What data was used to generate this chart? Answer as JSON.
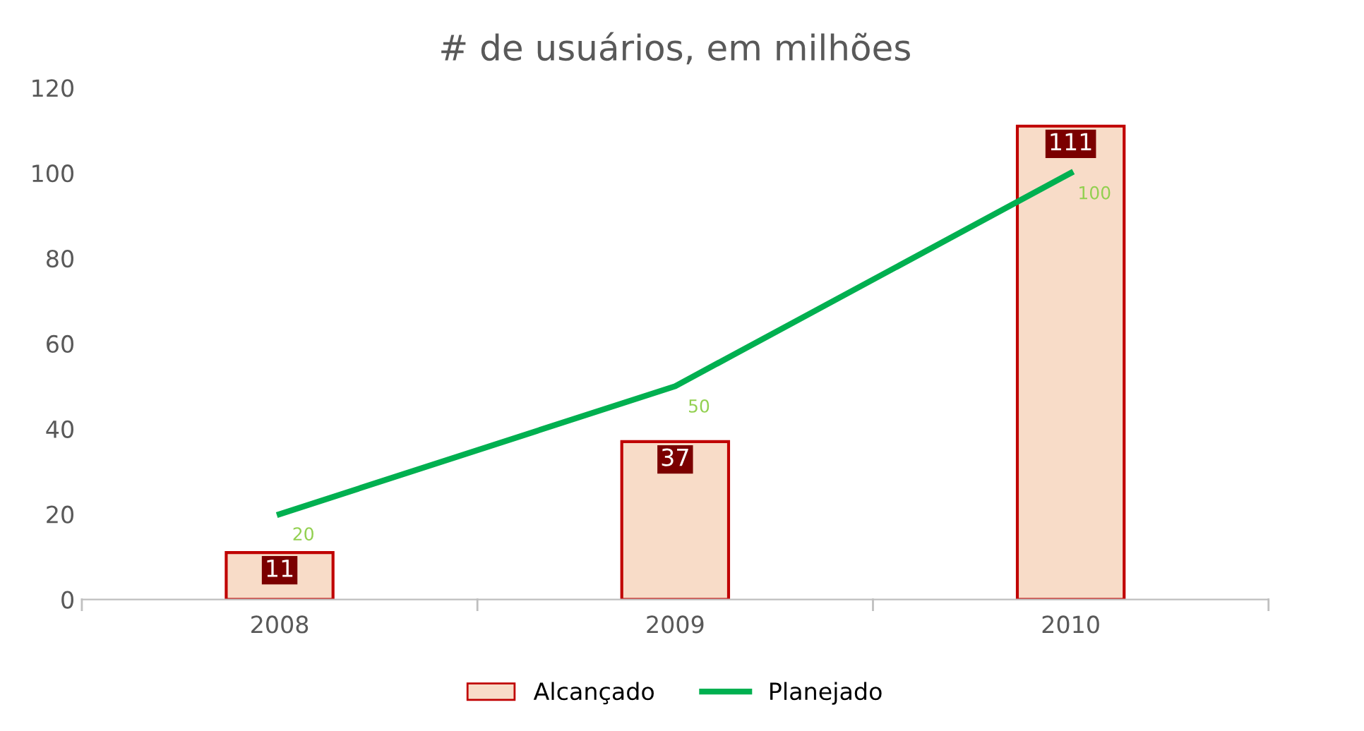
{
  "chart_data": {
    "type": "bar",
    "title": "# de usuários, em milhões",
    "categories": [
      "2008",
      "2009",
      "2010"
    ],
    "series": [
      {
        "name": "Alcançado",
        "color": "#f8dcc8",
        "values": [
          11,
          37,
          111
        ]
      },
      {
        "name": "Planejado",
        "type": "line",
        "color": "#00b050",
        "values": [
          20,
          50,
          100
        ]
      }
    ],
    "ylim": [
      0,
      120
    ],
    "yticks": [
      0,
      20,
      40,
      60,
      80,
      100,
      120
    ],
    "grid": false,
    "legend": "bottom",
    "data_labels": true
  }
}
